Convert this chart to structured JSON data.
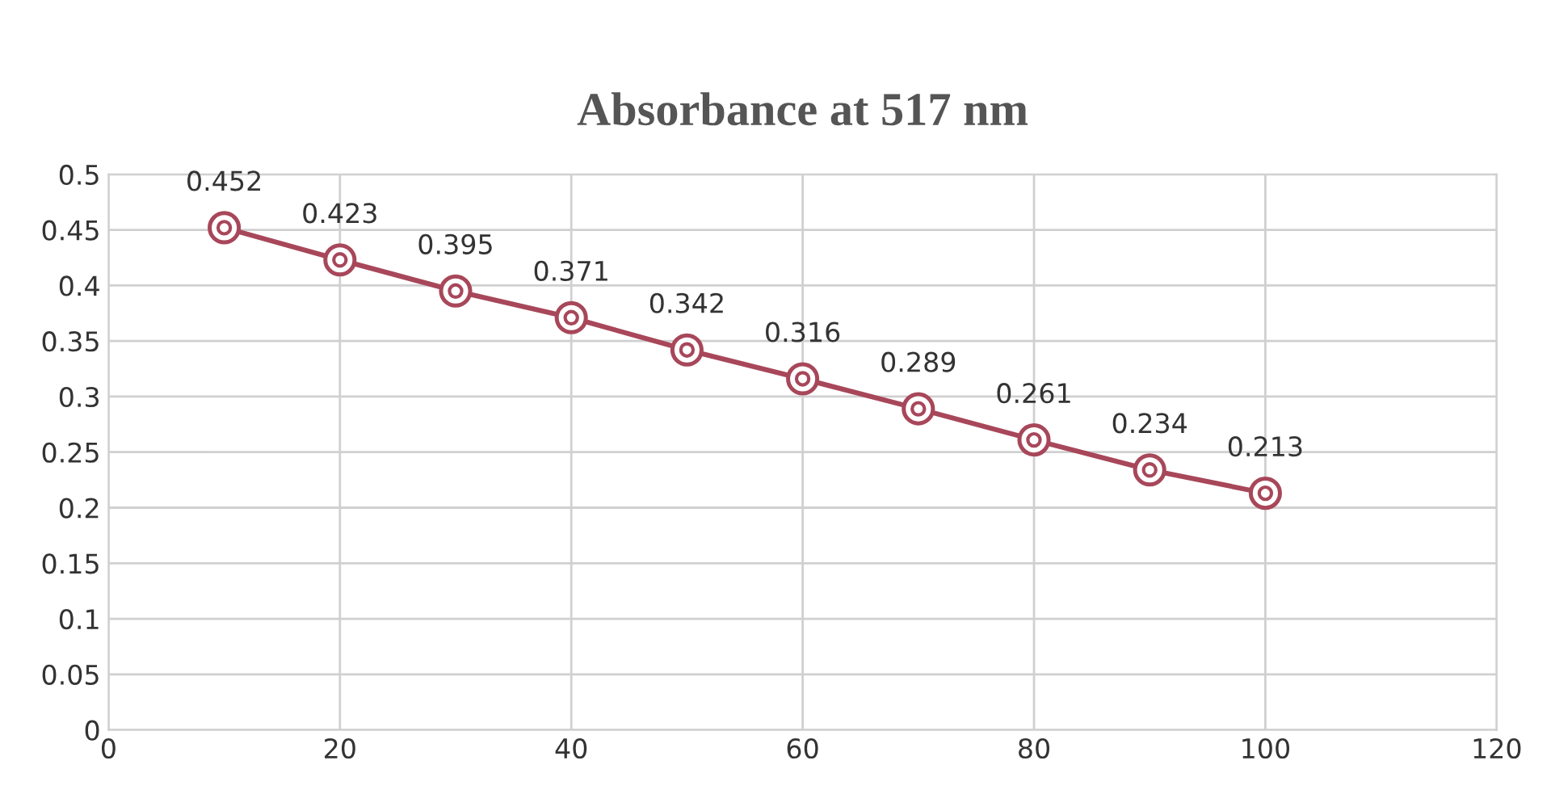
{
  "chart_data": {
    "type": "line",
    "title": "Absorbance at 517 nm",
    "x": [
      10,
      20,
      30,
      40,
      50,
      60,
      70,
      80,
      90,
      100
    ],
    "series": [
      {
        "color": "#a8475a",
        "values": [
          0.452,
          0.423,
          0.395,
          0.371,
          0.342,
          0.316,
          0.289,
          0.261,
          0.234,
          0.213
        ]
      }
    ],
    "xlim": [
      0,
      120
    ],
    "xticks": [
      0,
      20,
      40,
      60,
      80,
      100,
      120
    ],
    "ylim": [
      0,
      0.5
    ],
    "yticks": [
      0,
      0.05,
      0.1,
      0.15,
      0.2,
      0.25,
      0.3,
      0.35,
      0.4,
      0.45,
      0.5
    ],
    "grid": true,
    "marker": "circle",
    "line_style": "solid",
    "data_labels": true
  }
}
